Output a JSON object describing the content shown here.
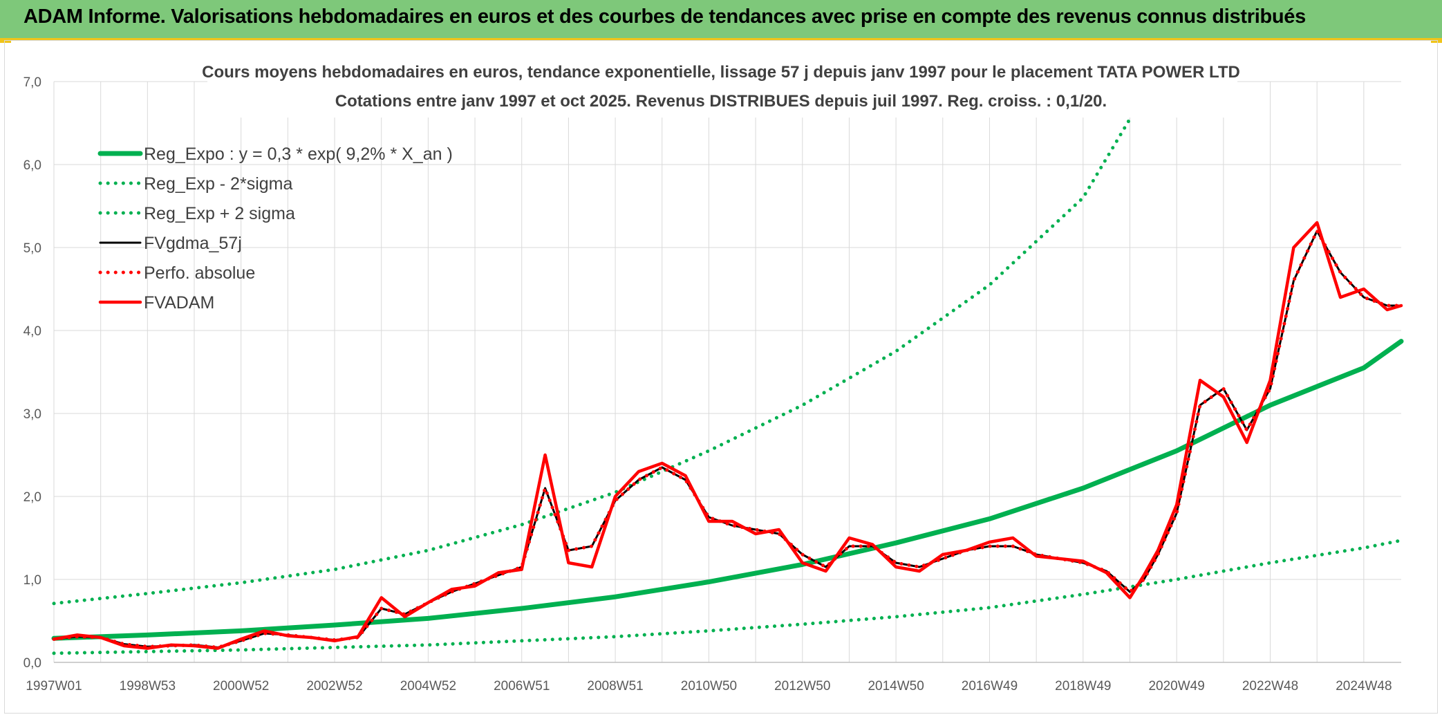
{
  "banner": {
    "title": "ADAM Informe. Valorisations hebdomadaires en euros et des courbes de tendances avec prise en compte des revenus connus distribués"
  },
  "colors": {
    "banner": "#7ec87a",
    "accent": "#f0c419",
    "trend": "#00b050",
    "smooth": "#000000",
    "price": "#ff0000"
  },
  "chart_data": {
    "type": "line",
    "title": "Cours moyens hebdomadaires en euros, tendance exponentielle, lissage 57 j depuis janv 1997 pour le placement TATA POWER LTD",
    "subtitle": "Cotations entre janv 1997 et oct 2025. Revenus DISTRIBUES depuis juil 1997. Reg. croiss. : 0,1/20.",
    "xlabel": "",
    "ylabel": "",
    "xlim": [
      1997.0,
      2025.8
    ],
    "ylim": [
      0,
      7
    ],
    "yticks": [
      "0,0",
      "1,0",
      "2,0",
      "3,0",
      "4,0",
      "5,0",
      "6,0",
      "7,0"
    ],
    "xticks": [
      {
        "label": "1997W01",
        "x": 1997.0
      },
      {
        "label": "1998W53",
        "x": 1999.0
      },
      {
        "label": "2000W52",
        "x": 2001.0
      },
      {
        "label": "2002W52",
        "x": 2003.0
      },
      {
        "label": "2004W52",
        "x": 2005.0
      },
      {
        "label": "2006W51",
        "x": 2007.0
      },
      {
        "label": "2008W51",
        "x": 2009.0
      },
      {
        "label": "2010W50",
        "x": 2011.0
      },
      {
        "label": "2012W50",
        "x": 2013.0
      },
      {
        "label": "2014W50",
        "x": 2015.0
      },
      {
        "label": "2016W49",
        "x": 2017.0
      },
      {
        "label": "2018W49",
        "x": 2019.0
      },
      {
        "label": "2020W49",
        "x": 2021.0
      },
      {
        "label": "2022W48",
        "x": 2023.0
      },
      {
        "label": "2024W48",
        "x": 2025.0
      }
    ],
    "grid": true,
    "legend_position": "top-left",
    "series": [
      {
        "name": "Reg_Expo : y = 0,3 * exp( 9,2% *  X_an )",
        "style": "solid-thick",
        "color": "#00b050",
        "x": [
          1997,
          1999,
          2001,
          2003,
          2005,
          2007,
          2009,
          2011,
          2013,
          2015,
          2017,
          2019,
          2021,
          2023,
          2025,
          2025.8
        ],
        "y": [
          0.29,
          0.33,
          0.38,
          0.45,
          0.53,
          0.65,
          0.79,
          0.97,
          1.18,
          1.44,
          1.73,
          2.1,
          2.55,
          3.1,
          3.55,
          3.87
        ]
      },
      {
        "name": "Reg_Exp - 2*sigma",
        "style": "dotted",
        "color": "#00b050",
        "x": [
          1997,
          1999,
          2001,
          2003,
          2005,
          2007,
          2009,
          2011,
          2013,
          2015,
          2017,
          2019,
          2021,
          2023,
          2025,
          2025.8
        ],
        "y": [
          0.11,
          0.13,
          0.15,
          0.18,
          0.21,
          0.26,
          0.31,
          0.38,
          0.46,
          0.55,
          0.66,
          0.82,
          1.0,
          1.2,
          1.38,
          1.47
        ]
      },
      {
        "name": "Reg_Exp + 2 sigma",
        "style": "dotted",
        "color": "#00b050",
        "x": [
          1997,
          1999,
          2001,
          2003,
          2005,
          2007,
          2009,
          2011,
          2013,
          2015,
          2017,
          2019,
          2020
        ],
        "y": [
          0.71,
          0.83,
          0.96,
          1.12,
          1.35,
          1.66,
          2.05,
          2.55,
          3.1,
          3.75,
          4.55,
          5.6,
          6.55
        ]
      },
      {
        "name": "FVgdma_57j",
        "style": "solid",
        "color": "#000000",
        "x": [
          1997,
          1997.5,
          1998,
          1998.5,
          1999,
          1999.5,
          2000,
          2000.5,
          2001,
          2001.5,
          2002,
          2002.5,
          2003,
          2003.5,
          2004,
          2004.5,
          2005,
          2005.5,
          2006,
          2006.5,
          2007,
          2007.5,
          2008,
          2008.5,
          2009,
          2009.5,
          2010,
          2010.5,
          2011,
          2011.5,
          2012,
          2012.5,
          2013,
          2013.5,
          2014,
          2014.5,
          2015,
          2015.5,
          2016,
          2016.5,
          2017,
          2017.5,
          2018,
          2018.5,
          2019,
          2019.5,
          2020,
          2020.3,
          2020.6,
          2021,
          2021.5,
          2022,
          2022.5,
          2023,
          2023.5,
          2024,
          2024.5,
          2025,
          2025.5,
          2025.8
        ],
        "y": [
          0.28,
          0.31,
          0.3,
          0.22,
          0.19,
          0.2,
          0.21,
          0.18,
          0.26,
          0.35,
          0.33,
          0.3,
          0.27,
          0.3,
          0.65,
          0.58,
          0.72,
          0.85,
          0.95,
          1.05,
          1.15,
          2.1,
          1.35,
          1.4,
          1.95,
          2.2,
          2.35,
          2.2,
          1.75,
          1.65,
          1.6,
          1.55,
          1.3,
          1.15,
          1.4,
          1.4,
          1.2,
          1.15,
          1.25,
          1.35,
          1.4,
          1.4,
          1.3,
          1.25,
          1.2,
          1.1,
          0.85,
          1.0,
          1.3,
          1.8,
          3.1,
          3.3,
          2.8,
          3.3,
          4.6,
          5.2,
          4.7,
          4.4,
          4.3,
          4.3
        ]
      },
      {
        "name": "Perfo. absolue",
        "style": "dotted",
        "color": "#ff0000",
        "x": [
          1997,
          1997.5,
          1998,
          1998.5,
          1999,
          1999.5,
          2000,
          2000.5,
          2001,
          2001.5,
          2002,
          2002.5,
          2003,
          2003.5,
          2004,
          2004.5,
          2005,
          2005.5,
          2006,
          2006.5,
          2007,
          2007.5,
          2008,
          2008.5,
          2009,
          2009.5,
          2010,
          2010.5,
          2011,
          2011.5,
          2012,
          2012.5,
          2013,
          2013.5,
          2014,
          2014.5,
          2015,
          2015.5,
          2016,
          2016.5,
          2017,
          2017.5,
          2018,
          2018.5,
          2019,
          2019.5,
          2020,
          2020.3,
          2020.6,
          2021,
          2021.5,
          2022,
          2022.5,
          2023,
          2023.5,
          2024,
          2024.5,
          2025,
          2025.5,
          2025.8
        ],
        "y": [
          0.28,
          0.31,
          0.3,
          0.22,
          0.19,
          0.2,
          0.21,
          0.18,
          0.26,
          0.35,
          0.33,
          0.3,
          0.27,
          0.3,
          0.65,
          0.58,
          0.72,
          0.85,
          0.95,
          1.05,
          1.15,
          2.1,
          1.35,
          1.4,
          1.95,
          2.2,
          2.35,
          2.2,
          1.75,
          1.65,
          1.6,
          1.55,
          1.3,
          1.15,
          1.4,
          1.4,
          1.2,
          1.15,
          1.25,
          1.35,
          1.4,
          1.4,
          1.3,
          1.25,
          1.2,
          1.1,
          0.85,
          1.0,
          1.3,
          1.8,
          3.1,
          3.3,
          2.8,
          3.3,
          4.6,
          5.2,
          4.7,
          4.4,
          4.3,
          4.3
        ]
      },
      {
        "name": "FVADAM",
        "style": "solid-thick",
        "color": "#ff0000",
        "x": [
          1997,
          1997.5,
          1998,
          1998.5,
          1999,
          1999.5,
          2000,
          2000.5,
          2001,
          2001.5,
          2002,
          2002.5,
          2003,
          2003.5,
          2004,
          2004.5,
          2005,
          2005.5,
          2006,
          2006.5,
          2007,
          2007.5,
          2008,
          2008.5,
          2009,
          2009.5,
          2010,
          2010.5,
          2011,
          2011.5,
          2012,
          2012.5,
          2013,
          2013.5,
          2014,
          2014.5,
          2015,
          2015.5,
          2016,
          2016.5,
          2017,
          2017.5,
          2018,
          2018.5,
          2019,
          2019.5,
          2020,
          2020.3,
          2020.6,
          2021,
          2021.5,
          2022,
          2022.5,
          2023,
          2023.5,
          2024,
          2024.5,
          2025,
          2025.5,
          2025.8
        ],
        "y": [
          0.28,
          0.33,
          0.3,
          0.2,
          0.17,
          0.21,
          0.2,
          0.17,
          0.28,
          0.38,
          0.32,
          0.3,
          0.26,
          0.31,
          0.78,
          0.55,
          0.72,
          0.88,
          0.92,
          1.08,
          1.12,
          2.5,
          1.2,
          1.15,
          2.0,
          2.3,
          2.4,
          2.25,
          1.7,
          1.7,
          1.55,
          1.6,
          1.2,
          1.1,
          1.5,
          1.42,
          1.15,
          1.1,
          1.3,
          1.35,
          1.45,
          1.5,
          1.28,
          1.25,
          1.22,
          1.08,
          0.78,
          1.05,
          1.35,
          1.9,
          3.4,
          3.2,
          2.65,
          3.4,
          5.0,
          5.3,
          4.4,
          4.5,
          4.25,
          4.3
        ]
      }
    ]
  }
}
